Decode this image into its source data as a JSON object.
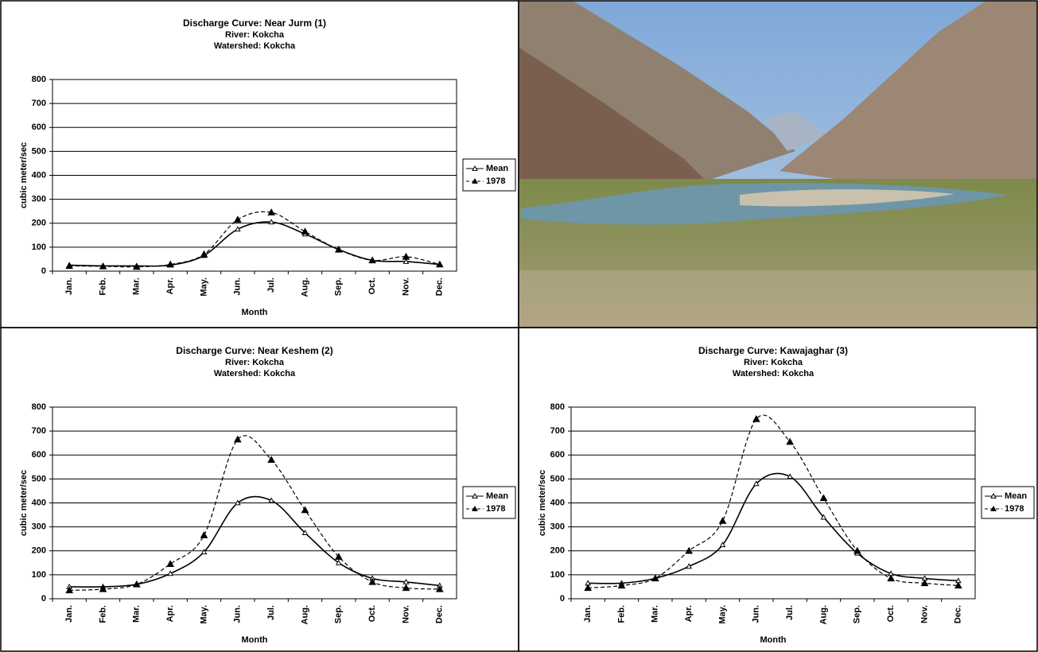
{
  "chart_data": [
    {
      "type": "line",
      "title": "Discharge Curve: Near Jurm (1)",
      "subtitles": [
        "River: Kokcha",
        "Watershed: Kokcha"
      ],
      "xlabel": "Month",
      "ylabel": "cubic meter/sec",
      "categories": [
        "Jan.",
        "Feb.",
        "Mar.",
        "Apr.",
        "May.",
        "Jun.",
        "Jul.",
        "Aug.",
        "Sep.",
        "Oct.",
        "Nov.",
        "Dec."
      ],
      "series": [
        {
          "name": "Mean",
          "color": "#000000",
          "dashed": false,
          "marker_filled": false,
          "values": [
            25,
            22,
            22,
            25,
            65,
            175,
            205,
            155,
            90,
            45,
            40,
            28
          ]
        },
        {
          "name": "1978",
          "color": "#000000",
          "dashed": true,
          "marker_filled": true,
          "values": [
            22,
            20,
            18,
            28,
            70,
            215,
            245,
            165,
            90,
            45,
            60,
            28
          ]
        }
      ],
      "ylim": [
        0,
        800
      ],
      "yticks": [
        0,
        100,
        200,
        300,
        400,
        500,
        600,
        700,
        800
      ],
      "grid": true,
      "legend": "right"
    },
    {
      "type": "line",
      "title": "Discharge Curve: Near Keshem (2)",
      "subtitles": [
        "River: Kokcha",
        "Watershed: Kokcha"
      ],
      "xlabel": "Month",
      "ylabel": "cubic meter/sec",
      "categories": [
        "Jan.",
        "Feb.",
        "Mar.",
        "Apr.",
        "May.",
        "Jun.",
        "Jul.",
        "Aug.",
        "Sep.",
        "Oct.",
        "Nov.",
        "Dec."
      ],
      "series": [
        {
          "name": "Mean",
          "color": "#000000",
          "dashed": false,
          "marker_filled": false,
          "values": [
            50,
            50,
            60,
            105,
            195,
            400,
            410,
            275,
            150,
            85,
            70,
            55
          ]
        },
        {
          "name": "1978",
          "color": "#000000",
          "dashed": true,
          "marker_filled": true,
          "values": [
            35,
            40,
            60,
            145,
            265,
            665,
            580,
            370,
            175,
            70,
            45,
            40
          ]
        }
      ],
      "ylim": [
        0,
        800
      ],
      "yticks": [
        0,
        100,
        200,
        300,
        400,
        500,
        600,
        700,
        800
      ],
      "grid": true,
      "legend": "right"
    },
    {
      "type": "line",
      "title": "Discharge Curve: Kawajaghar (3)",
      "subtitles": [
        "River: Kokcha",
        "Watershed: Kokcha"
      ],
      "xlabel": "Month",
      "ylabel": "cubic meter/sec",
      "categories": [
        "Jan.",
        "Feb.",
        "Mar.",
        "Apr.",
        "May.",
        "Jun.",
        "Jul.",
        "Aug.",
        "Sep.",
        "Oct.",
        "Nov.",
        "Dec."
      ],
      "series": [
        {
          "name": "Mean",
          "color": "#000000",
          "dashed": false,
          "marker_filled": false,
          "values": [
            65,
            65,
            85,
            135,
            225,
            480,
            510,
            340,
            190,
            105,
            85,
            75
          ]
        },
        {
          "name": "1978",
          "color": "#000000",
          "dashed": true,
          "marker_filled": true,
          "values": [
            45,
            55,
            85,
            200,
            325,
            750,
            655,
            420,
            200,
            85,
            65,
            55
          ]
        }
      ],
      "ylim": [
        0,
        800
      ],
      "yticks": [
        0,
        100,
        200,
        300,
        400,
        500,
        600,
        700,
        800
      ],
      "grid": true,
      "legend": "right"
    }
  ]
}
